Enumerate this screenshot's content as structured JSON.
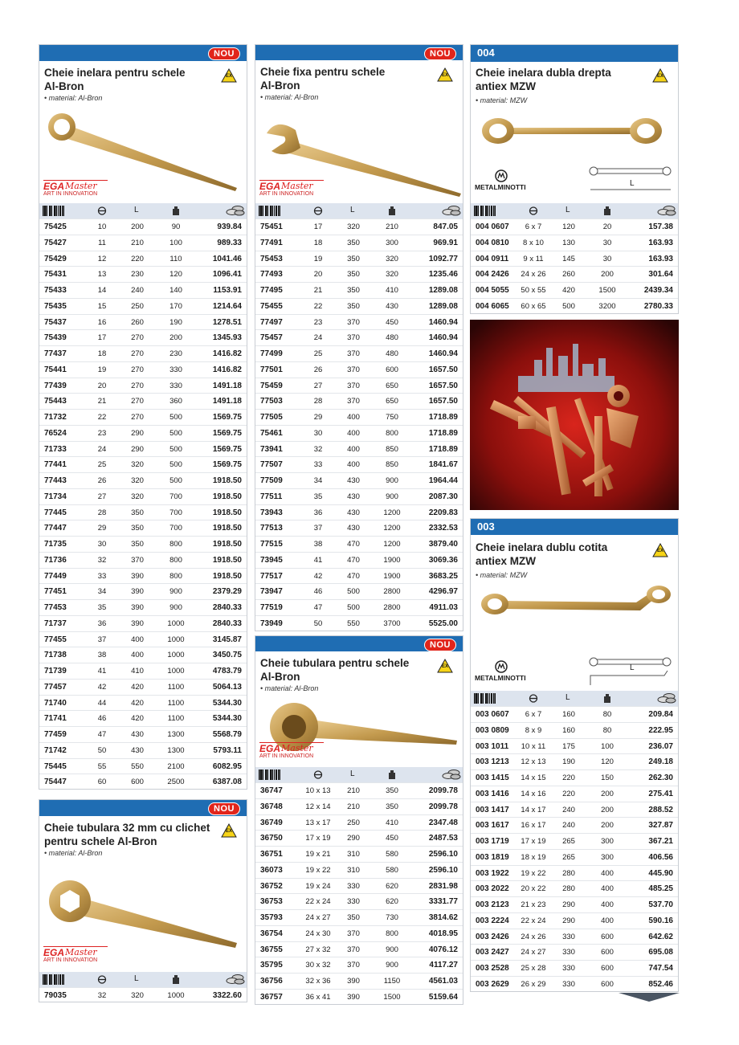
{
  "panels": [
    {
      "badge": "NOU",
      "title_lines": [
        "Cheie inelara pentru schele",
        "Al-Bron"
      ],
      "material": "• material: Al-Bron",
      "ex": "EX",
      "brand": {
        "name": "EGA",
        "script": "Master",
        "tagline": "ART IN INNOVATION"
      },
      "columns": {
        "length": "L"
      },
      "rows": [
        [
          "75425",
          "10",
          "200",
          "90",
          "939.84"
        ],
        [
          "75427",
          "11",
          "210",
          "100",
          "989.33"
        ],
        [
          "75429",
          "12",
          "220",
          "110",
          "1041.46"
        ],
        [
          "75431",
          "13",
          "230",
          "120",
          "1096.41"
        ],
        [
          "75433",
          "14",
          "240",
          "140",
          "1153.91"
        ],
        [
          "75435",
          "15",
          "250",
          "170",
          "1214.64"
        ],
        [
          "75437",
          "16",
          "260",
          "190",
          "1278.51"
        ],
        [
          "75439",
          "17",
          "270",
          "200",
          "1345.93"
        ],
        [
          "77437",
          "18",
          "270",
          "230",
          "1416.82"
        ],
        [
          "75441",
          "19",
          "270",
          "330",
          "1416.82"
        ],
        [
          "77439",
          "20",
          "270",
          "330",
          "1491.18"
        ],
        [
          "75443",
          "21",
          "270",
          "360",
          "1491.18"
        ],
        [
          "71732",
          "22",
          "270",
          "500",
          "1569.75"
        ],
        [
          "76524",
          "23",
          "290",
          "500",
          "1569.75"
        ],
        [
          "71733",
          "24",
          "290",
          "500",
          "1569.75"
        ],
        [
          "77441",
          "25",
          "320",
          "500",
          "1569.75"
        ],
        [
          "77443",
          "26",
          "320",
          "500",
          "1918.50"
        ],
        [
          "71734",
          "27",
          "320",
          "700",
          "1918.50"
        ],
        [
          "77445",
          "28",
          "350",
          "700",
          "1918.50"
        ],
        [
          "77447",
          "29",
          "350",
          "700",
          "1918.50"
        ],
        [
          "71735",
          "30",
          "350",
          "800",
          "1918.50"
        ],
        [
          "71736",
          "32",
          "370",
          "800",
          "1918.50"
        ],
        [
          "77449",
          "33",
          "390",
          "800",
          "1918.50"
        ],
        [
          "77451",
          "34",
          "390",
          "900",
          "2379.29"
        ],
        [
          "77453",
          "35",
          "390",
          "900",
          "2840.33"
        ],
        [
          "71737",
          "36",
          "390",
          "1000",
          "2840.33"
        ],
        [
          "77455",
          "37",
          "400",
          "1000",
          "3145.87"
        ],
        [
          "71738",
          "38",
          "400",
          "1000",
          "3450.75"
        ],
        [
          "71739",
          "41",
          "410",
          "1000",
          "4783.79"
        ],
        [
          "77457",
          "42",
          "420",
          "1100",
          "5064.13"
        ],
        [
          "71740",
          "44",
          "420",
          "1100",
          "5344.30"
        ],
        [
          "71741",
          "46",
          "420",
          "1100",
          "5344.30"
        ],
        [
          "77459",
          "47",
          "430",
          "1300",
          "5568.79"
        ],
        [
          "71742",
          "50",
          "430",
          "1300",
          "5793.11"
        ],
        [
          "75445",
          "55",
          "550",
          "2100",
          "6082.95"
        ],
        [
          "75447",
          "60",
          "600",
          "2500",
          "6387.08"
        ]
      ]
    },
    {
      "badge": "NOU",
      "title_lines": [
        "Cheie tubulara 32 mm cu clichet",
        "pentru schele Al-Bron"
      ],
      "material": "• material: Al-Bron",
      "ex": "EX",
      "brand": {
        "name": "EGA",
        "script": "Master",
        "tagline": "ART IN INNOVATION"
      },
      "columns": {
        "length": "L"
      },
      "rows": [
        [
          "79035",
          "32",
          "320",
          "1000",
          "3322.60"
        ]
      ]
    },
    {
      "badge": "NOU",
      "title_lines": [
        "Cheie fixa pentru schele",
        "Al-Bron"
      ],
      "material": "• material: Al-Bron",
      "ex": "EX",
      "brand": {
        "name": "EGA",
        "script": "Master",
        "tagline": "ART IN INNOVATION"
      },
      "columns": {
        "length": "L"
      },
      "rows": [
        [
          "75451",
          "17",
          "320",
          "210",
          "847.05"
        ],
        [
          "77491",
          "18",
          "350",
          "300",
          "969.91"
        ],
        [
          "75453",
          "19",
          "350",
          "320",
          "1092.77"
        ],
        [
          "77493",
          "20",
          "350",
          "320",
          "1235.46"
        ],
        [
          "77495",
          "21",
          "350",
          "410",
          "1289.08"
        ],
        [
          "75455",
          "22",
          "350",
          "430",
          "1289.08"
        ],
        [
          "77497",
          "23",
          "370",
          "450",
          "1460.94"
        ],
        [
          "75457",
          "24",
          "370",
          "480",
          "1460.94"
        ],
        [
          "77499",
          "25",
          "370",
          "480",
          "1460.94"
        ],
        [
          "77501",
          "26",
          "370",
          "600",
          "1657.50"
        ],
        [
          "75459",
          "27",
          "370",
          "650",
          "1657.50"
        ],
        [
          "77503",
          "28",
          "370",
          "650",
          "1657.50"
        ],
        [
          "77505",
          "29",
          "400",
          "750",
          "1718.89"
        ],
        [
          "75461",
          "30",
          "400",
          "800",
          "1718.89"
        ],
        [
          "73941",
          "32",
          "400",
          "850",
          "1718.89"
        ],
        [
          "77507",
          "33",
          "400",
          "850",
          "1841.67"
        ],
        [
          "77509",
          "34",
          "430",
          "900",
          "1964.44"
        ],
        [
          "77511",
          "35",
          "430",
          "900",
          "2087.30"
        ],
        [
          "73943",
          "36",
          "430",
          "1200",
          "2209.83"
        ],
        [
          "77513",
          "37",
          "430",
          "1200",
          "2332.53"
        ],
        [
          "77515",
          "38",
          "470",
          "1200",
          "3879.40"
        ],
        [
          "73945",
          "41",
          "470",
          "1900",
          "3069.36"
        ],
        [
          "77517",
          "42",
          "470",
          "1900",
          "3683.25"
        ],
        [
          "73947",
          "46",
          "500",
          "2800",
          "4296.97"
        ],
        [
          "77519",
          "47",
          "500",
          "2800",
          "4911.03"
        ],
        [
          "73949",
          "50",
          "550",
          "3700",
          "5525.00"
        ]
      ]
    },
    {
      "badge": "NOU",
      "title_lines": [
        "Cheie tubulara pentru schele",
        "Al-Bron"
      ],
      "material": "• material: Al-Bron",
      "ex": "EX",
      "brand": {
        "name": "EGA",
        "script": "Master",
        "tagline": "ART IN INNOVATION"
      },
      "columns": {
        "length": "L"
      },
      "rows": [
        [
          "36747",
          "10 x 13",
          "210",
          "350",
          "2099.78"
        ],
        [
          "36748",
          "12 x 14",
          "210",
          "350",
          "2099.78"
        ],
        [
          "36749",
          "13 x 17",
          "250",
          "410",
          "2347.48"
        ],
        [
          "36750",
          "17 x 19",
          "290",
          "450",
          "2487.53"
        ],
        [
          "36751",
          "19 x 21",
          "310",
          "580",
          "2596.10"
        ],
        [
          "36073",
          "19 x 22",
          "310",
          "580",
          "2596.10"
        ],
        [
          "36752",
          "19 x 24",
          "330",
          "620",
          "2831.98"
        ],
        [
          "36753",
          "22 x 24",
          "330",
          "620",
          "3331.77"
        ],
        [
          "35793",
          "24 x 27",
          "350",
          "730",
          "3814.62"
        ],
        [
          "36754",
          "24 x 30",
          "370",
          "800",
          "4018.95"
        ],
        [
          "36755",
          "27 x 32",
          "370",
          "900",
          "4076.12"
        ],
        [
          "35795",
          "30 x 32",
          "370",
          "900",
          "4117.27"
        ],
        [
          "36756",
          "32 x 36",
          "390",
          "1150",
          "4561.03"
        ],
        [
          "36757",
          "36 x 41",
          "390",
          "1500",
          "5159.64"
        ]
      ]
    },
    {
      "code": "004",
      "title_lines": [
        "Cheie inelara dubla drepta",
        "antiex MZW"
      ],
      "material": "• material: MZW",
      "ex": "EX",
      "brand": {
        "name": "METALMINOTTI"
      },
      "diagram_label": "L",
      "columns": {
        "length": "L"
      },
      "rows": [
        [
          "004 0607",
          "6 x 7",
          "120",
          "20",
          "157.38"
        ],
        [
          "004 0810",
          "8 x 10",
          "130",
          "30",
          "163.93"
        ],
        [
          "004 0911",
          "9 x 11",
          "145",
          "30",
          "163.93"
        ],
        [
          "004 2426",
          "24 x 26",
          "260",
          "200",
          "301.64"
        ],
        [
          "004 5055",
          "50 x 55",
          "420",
          "1500",
          "2439.34"
        ],
        [
          "004 6065",
          "60 x 65",
          "500",
          "3200",
          "2780.33"
        ]
      ]
    },
    {
      "code": "003",
      "title_lines": [
        "Cheie inelara dublu cotita",
        "antiex MZW"
      ],
      "material": "• material: MZW",
      "ex": "EX",
      "brand": {
        "name": "METALMINOTTI"
      },
      "diagram_label": "L",
      "columns": {
        "length": "L"
      },
      "rows": [
        [
          "003 0607",
          "6 x 7",
          "160",
          "80",
          "209.84"
        ],
        [
          "003 0809",
          "8 x 9",
          "160",
          "80",
          "222.95"
        ],
        [
          "003 1011",
          "10 x 11",
          "175",
          "100",
          "236.07"
        ],
        [
          "003 1213",
          "12 x 13",
          "190",
          "120",
          "249.18"
        ],
        [
          "003 1415",
          "14 x 15",
          "220",
          "150",
          "262.30"
        ],
        [
          "003 1416",
          "14 x 16",
          "220",
          "200",
          "275.41"
        ],
        [
          "003 1417",
          "14 x 17",
          "240",
          "200",
          "288.52"
        ],
        [
          "003 1617",
          "16 x 17",
          "240",
          "200",
          "327.87"
        ],
        [
          "003 1719",
          "17 x 19",
          "265",
          "300",
          "367.21"
        ],
        [
          "003 1819",
          "18 x 19",
          "265",
          "300",
          "406.56"
        ],
        [
          "003 1922",
          "19 x 22",
          "280",
          "400",
          "445.90"
        ],
        [
          "003 2022",
          "20 x 22",
          "280",
          "400",
          "485.25"
        ],
        [
          "003 2123",
          "21 x 23",
          "290",
          "400",
          "537.70"
        ],
        [
          "003 2224",
          "22 x 24",
          "290",
          "400",
          "590.16"
        ],
        [
          "003 2426",
          "24 x 26",
          "330",
          "600",
          "642.62"
        ],
        [
          "003 2427",
          "24 x 27",
          "330",
          "600",
          "695.08"
        ],
        [
          "003 2528",
          "25 x 28",
          "330",
          "600",
          "747.54"
        ],
        [
          "003 2629",
          "26 x 29",
          "330",
          "600",
          "852.46"
        ]
      ]
    }
  ]
}
